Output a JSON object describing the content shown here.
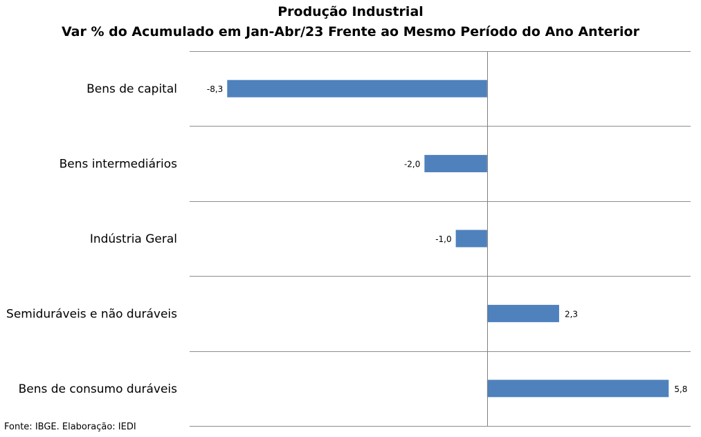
{
  "chart_data": {
    "type": "bar",
    "orientation": "horizontal",
    "title": "Produção Industrial",
    "subtitle": "Var % do Acumulado em Jan-Abr/23 Frente ao Mesmo Período do Ano Anterior",
    "categories": [
      "Bens de capital",
      "Bens intermediários",
      "Indústria Geral",
      "Semiduráveis e não duráveis",
      "Bens de consumo duráveis"
    ],
    "values": [
      -8.3,
      -2.0,
      -1.0,
      2.3,
      5.8
    ],
    "value_labels": [
      "-8,3",
      "-2,0",
      "-1,0",
      "2,3",
      "5,8"
    ],
    "xlim": [
      -9.5,
      6.5
    ],
    "bar_color": "#4f81bd",
    "grid": true,
    "legend": "none"
  },
  "footer": {
    "source": "Fonte: IBGE. Elaboração: IEDI"
  }
}
